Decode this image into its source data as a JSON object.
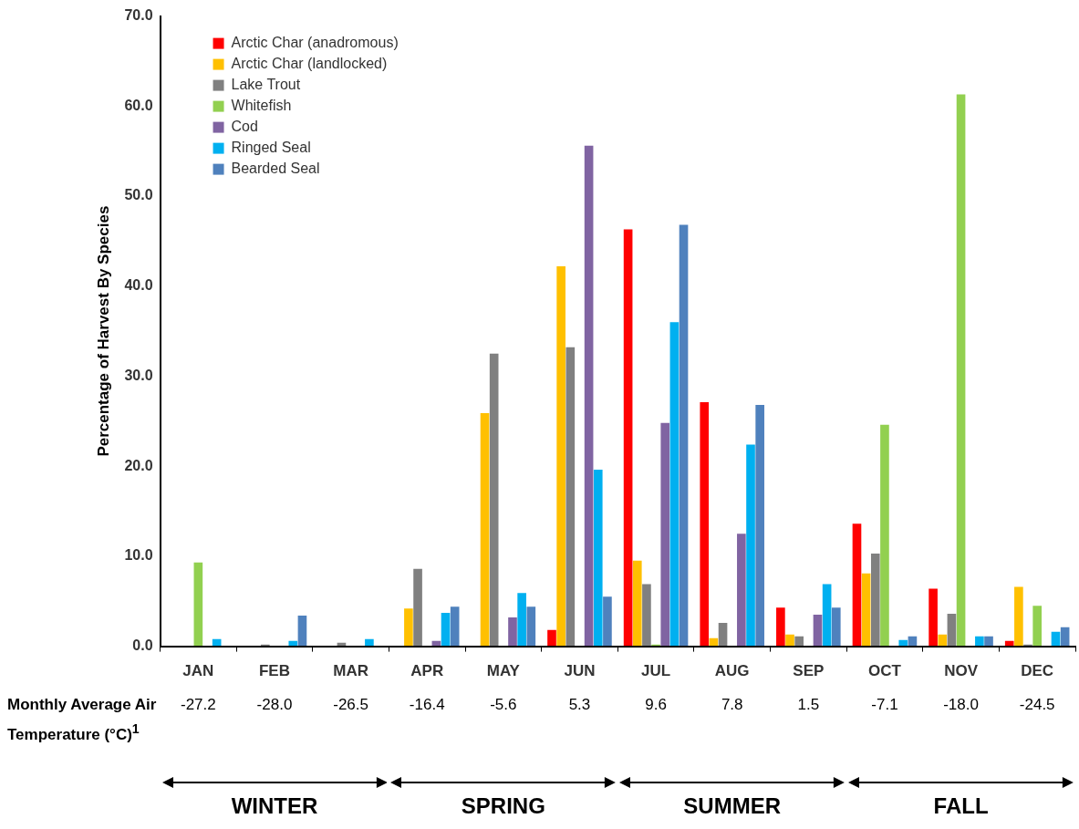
{
  "chart_data": {
    "type": "bar",
    "ylabel": "Percentage of Harvest By Species",
    "categories": [
      "JAN",
      "FEB",
      "MAR",
      "APR",
      "MAY",
      "JUN",
      "JUL",
      "AUG",
      "SEP",
      "OCT",
      "NOV",
      "DEC"
    ],
    "series": [
      {
        "name": "Arctic Char (anadromous)",
        "color": "#ff0000",
        "values": [
          0,
          0,
          0,
          0,
          0,
          1.8,
          46.3,
          27.1,
          4.3,
          13.6,
          6.4,
          0.6
        ]
      },
      {
        "name": "Arctic Char (landlocked)",
        "color": "#ffc000",
        "values": [
          0,
          0,
          0,
          4.2,
          25.9,
          42.2,
          9.5,
          0.9,
          1.3,
          8.1,
          1.3,
          6.6
        ]
      },
      {
        "name": "Lake Trout",
        "color": "#808080",
        "values": [
          0,
          0.2,
          0.4,
          8.6,
          32.5,
          33.2,
          6.9,
          2.6,
          1.1,
          10.3,
          3.6,
          0.2
        ]
      },
      {
        "name": "Whitefish",
        "color": "#92d050",
        "values": [
          9.3,
          0,
          0,
          0,
          0,
          0,
          0.2,
          0,
          0,
          24.6,
          61.3,
          4.5
        ]
      },
      {
        "name": "Cod",
        "color": "#8064a2",
        "values": [
          0,
          0,
          0,
          0.6,
          3.2,
          55.6,
          24.8,
          12.5,
          3.5,
          0,
          0,
          0
        ]
      },
      {
        "name": "Ringed Seal",
        "color": "#00b0f0",
        "values": [
          0.8,
          0.6,
          0.8,
          3.7,
          5.9,
          19.6,
          36.0,
          22.4,
          6.9,
          0.7,
          1.1,
          1.6
        ]
      },
      {
        "name": "Bearded Seal",
        "color": "#4f81bd",
        "values": [
          0,
          3.4,
          0,
          4.4,
          4.4,
          5.5,
          46.8,
          26.8,
          4.3,
          1.1,
          1.1,
          2.1
        ]
      }
    ],
    "ylim": [
      0,
      70
    ],
    "yticks": [
      {
        "value": 0,
        "label": "0.0"
      },
      {
        "value": 10,
        "label": "10.0"
      },
      {
        "value": 20,
        "label": "20.0"
      },
      {
        "value": 30,
        "label": "30.0"
      },
      {
        "value": 40,
        "label": "40.0"
      },
      {
        "value": 50,
        "label": "50.0"
      },
      {
        "value": 60,
        "label": "60.0"
      },
      {
        "value": 70,
        "label": "70.0"
      }
    ],
    "grid": false,
    "legend": "top left",
    "annotations": [
      "Monthly Average Air Temperature (°C)$^{1}$",
      "-27.2",
      "-28.0",
      "-26.5",
      "-16.4",
      "-5.6",
      "5.3",
      "9.6",
      "7.8",
      "1.5",
      "-7.1",
      "-18.0",
      "-24.5",
      "WINTER",
      "SPRING",
      "SUMMER",
      "FALL"
    ]
  }
}
